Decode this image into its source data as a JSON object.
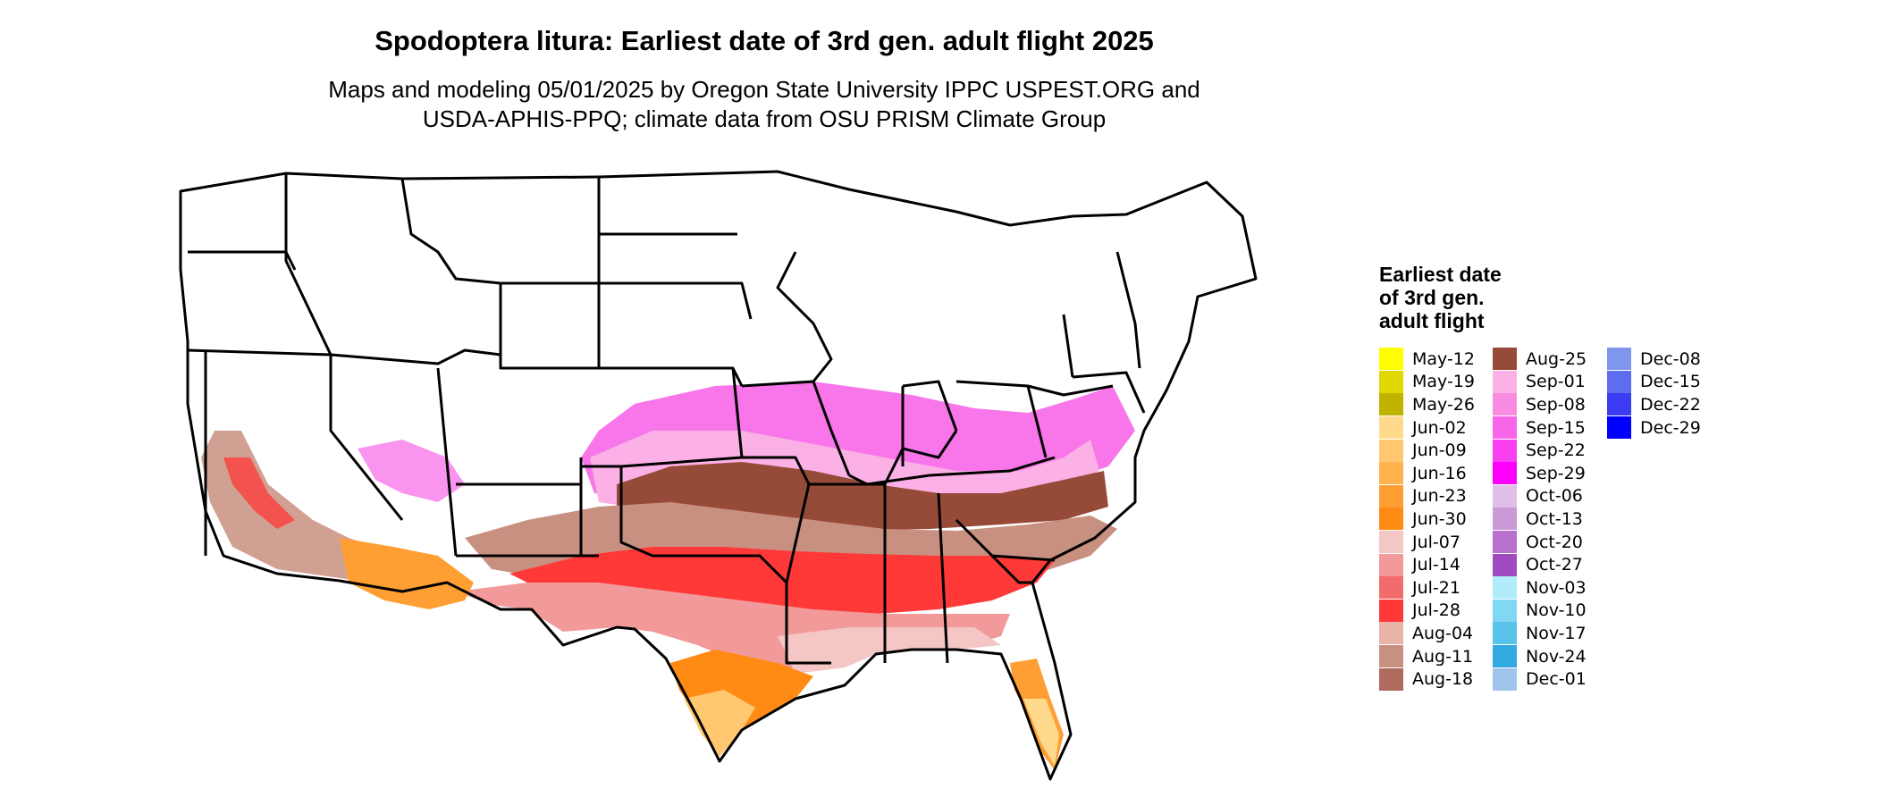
{
  "title": "Spodoptera litura: Earliest date of 3rd gen. adult flight 2025",
  "subtitle_line1": "Maps and modeling 05/01/2025 by Oregon State University IPPC USPEST.ORG and",
  "subtitle_line2": "USDA-APHIS-PPQ; climate data from OSU PRISM Climate Group",
  "legend": {
    "title_line1": "Earliest date",
    "title_line2": "of 3rd gen.",
    "title_line3": "adult flight",
    "items": [
      {
        "label": "May-12",
        "color": "#ffff00"
      },
      {
        "label": "May-19",
        "color": "#e0d800"
      },
      {
        "label": "May-26",
        "color": "#c2b200"
      },
      {
        "label": "Jun-02",
        "color": "#ffd98c"
      },
      {
        "label": "Jun-09",
        "color": "#ffc870"
      },
      {
        "label": "Jun-16",
        "color": "#ffb24d"
      },
      {
        "label": "Jun-23",
        "color": "#ff9f33"
      },
      {
        "label": "Jun-30",
        "color": "#ff8a14"
      },
      {
        "label": "Jul-07",
        "color": "#f5c6c6"
      },
      {
        "label": "Jul-14",
        "color": "#f29a9a"
      },
      {
        "label": "Jul-21",
        "color": "#f26c6c"
      },
      {
        "label": "Jul-28",
        "color": "#ff3838"
      },
      {
        "label": "Aug-04",
        "color": "#e8b4a8"
      },
      {
        "label": "Aug-11",
        "color": "#c89080"
      },
      {
        "label": "Aug-18",
        "color": "#b06a5e"
      },
      {
        "label": "Aug-25",
        "color": "#964a38"
      },
      {
        "label": "Sep-01",
        "color": "#fbb0e6"
      },
      {
        "label": "Sep-08",
        "color": "#f98ce0"
      },
      {
        "label": "Sep-15",
        "color": "#f766e8"
      },
      {
        "label": "Sep-22",
        "color": "#f940f0"
      },
      {
        "label": "Sep-29",
        "color": "#ff00ff"
      },
      {
        "label": "Oct-06",
        "color": "#dfbfe8"
      },
      {
        "label": "Oct-13",
        "color": "#cc99d8"
      },
      {
        "label": "Oct-20",
        "color": "#b870cc"
      },
      {
        "label": "Oct-27",
        "color": "#a04cc0"
      },
      {
        "label": "Nov-03",
        "color": "#b0ecfa"
      },
      {
        "label": "Nov-10",
        "color": "#80d8f2"
      },
      {
        "label": "Nov-17",
        "color": "#58c4ea"
      },
      {
        "label": "Nov-24",
        "color": "#30aae0"
      },
      {
        "label": "Dec-01",
        "color": "#a0c4ec"
      },
      {
        "label": "Dec-08",
        "color": "#7f96ec"
      },
      {
        "label": "Dec-15",
        "color": "#5e6cf0"
      },
      {
        "label": "Dec-22",
        "color": "#3c3cf5"
      },
      {
        "label": "Dec-29",
        "color": "#0000ff"
      }
    ]
  }
}
